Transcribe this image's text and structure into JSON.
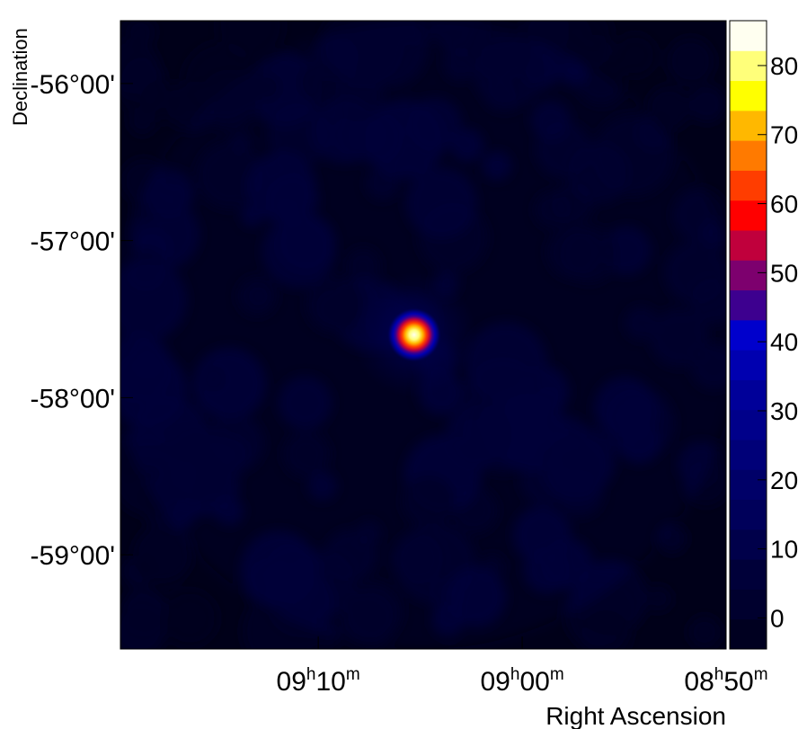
{
  "chart_data": {
    "type": "heatmap",
    "title": "",
    "xlabel": "Right Ascension",
    "ylabel": "Declination",
    "x_ticks": [
      {
        "h": "09",
        "m": "10",
        "ra_min": 550
      },
      {
        "h": "09",
        "m": "00",
        "ra_min": 540
      },
      {
        "h": "08",
        "m": "50",
        "ra_min": 530
      }
    ],
    "y_ticks": [
      {
        "label": "-56°00'",
        "dec": -56
      },
      {
        "label": "-57°00'",
        "dec": -57
      },
      {
        "label": "-58°00'",
        "dec": -58
      },
      {
        "label": "-59°00'",
        "dec": -59
      }
    ],
    "x_range_ra_min": [
      559.7,
      530
    ],
    "y_range_dec": [
      -59.6,
      -55.6
    ],
    "source": {
      "ra_min": 545.3,
      "dec": -57.6,
      "peak": 87
    },
    "background_level": 3,
    "colorbar": {
      "range": [
        -4.5,
        86.5
      ],
      "ticks": [
        0,
        10,
        20,
        30,
        40,
        50,
        60,
        70,
        80
      ],
      "colors": [
        "#000020",
        "#00002e",
        "#000039",
        "#00004a",
        "#00005a",
        "#000068",
        "#000078",
        "#00008a",
        "#000099",
        "#0000b0",
        "#0000cc",
        "#3d008f",
        "#7d006e",
        "#c0003c",
        "#ff0000",
        "#ff3d00",
        "#ff7a00",
        "#ffb800",
        "#ffff00",
        "#ffff7a",
        "#fffff0"
      ]
    }
  }
}
